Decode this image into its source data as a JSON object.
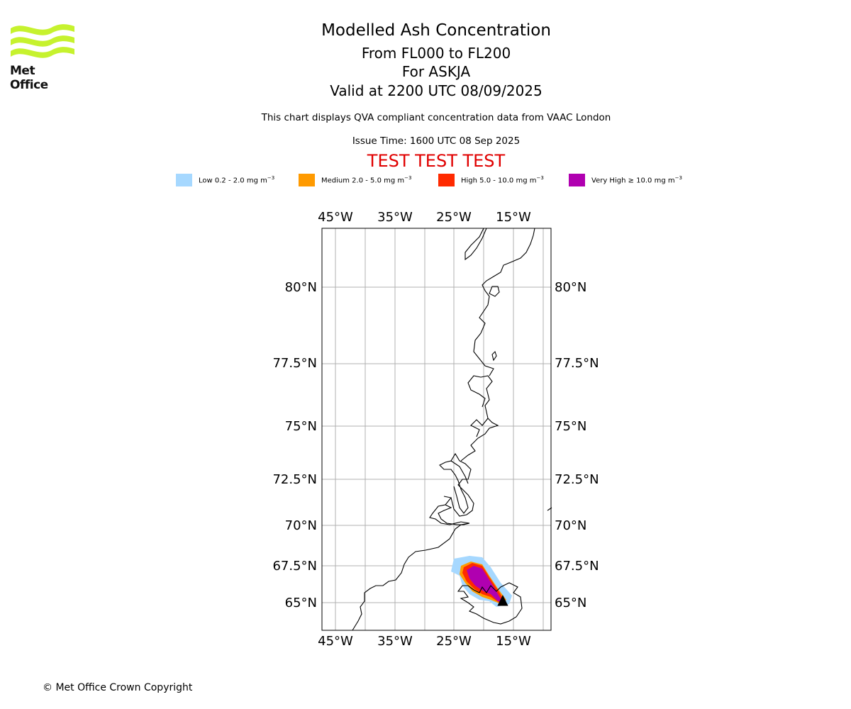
{
  "logo": {
    "text": "Met Office"
  },
  "titles": {
    "line1": "Modelled Ash Concentration",
    "line2": "From FL000 to FL200",
    "line3": "For ASKJA",
    "line4": "Valid at 2200 UTC 08/09/2025"
  },
  "subtitle": "This chart displays QVA compliant concentration data from VAAC London",
  "issue_time": "Issue Time: 1600 UTC 08 Sep 2025",
  "test_banner": "TEST TEST TEST",
  "legend": [
    {
      "label": "Low 0.2 - 2.0 mg m",
      "color": "#a6d8ff"
    },
    {
      "label": "Medium 2.0 - 5.0 mg m",
      "color": "#ff9a00"
    },
    {
      "label": "High 5.0 - 10.0 mg m",
      "color": "#ff2a00"
    },
    {
      "label": "Very High ≥ 10.0 mg m",
      "color": "#b000b0"
    }
  ],
  "legend_unit_exp": "−3",
  "map": {
    "lon_labels": [
      "45°W",
      "35°W",
      "25°W",
      "15°W"
    ],
    "lat_labels": [
      "80°N",
      "77.5°N",
      "75°N",
      "72.5°N",
      "70°N",
      "67.5°N",
      "65°N"
    ],
    "coastline_color": "#000000",
    "grid_color": "#b0b0b0",
    "volcano": "Askja",
    "volcano_symbol": "▲"
  },
  "copyright": "© Met Office Crown Copyright"
}
